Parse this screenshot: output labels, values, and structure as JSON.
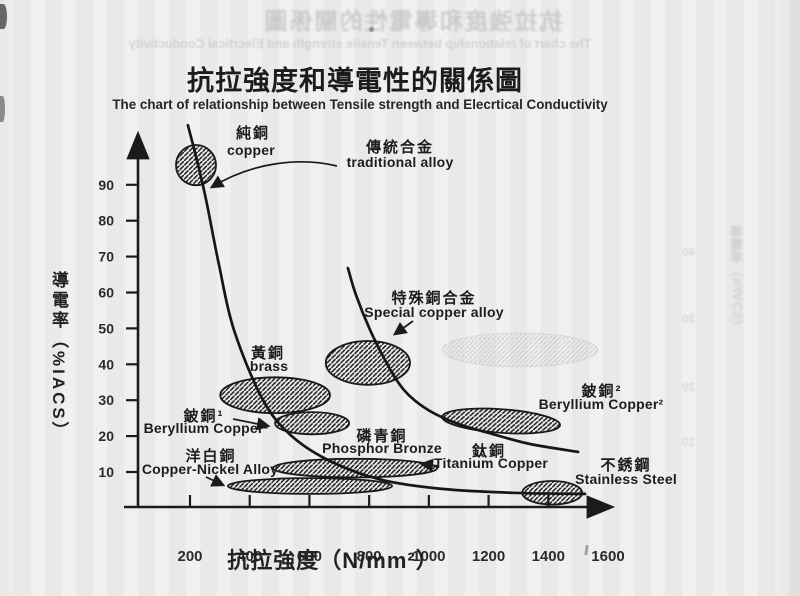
{
  "document": {
    "title_zh": "抗拉強度和導電性的關係圖",
    "subtitle_en": "The chart of relationship between Tensile strength and Elecrtical Conductivity"
  },
  "bleedthrough": {
    "top_title_mirrored": "抗拉強度和導電性的關係圖",
    "top_subtitle_mirrored": "The chart of relationship between Tensile strength and Elecrtical Conductivity",
    "right_vertical_mirrored": "導電率（%IACS）",
    "right_margin_numbers": [
      "40",
      "30",
      "20",
      "10"
    ]
  },
  "chart_data": {
    "type": "scatter",
    "title": "抗拉強度和導電性的關係圖",
    "subtitle": "The chart of relationship between Tensile strength and Elecrtical Conductivity",
    "xlabel": "抗拉強度（N/mm²）",
    "ylabel": "導電率（%IACS）",
    "xlim": [
      0,
      1650
    ],
    "ylim": [
      0,
      108
    ],
    "grid": false,
    "legend": "none",
    "x_ticks": [
      200,
      400,
      600,
      800,
      1000,
      1200,
      1400,
      1600
    ],
    "y_ticks": [
      10,
      20,
      30,
      40,
      50,
      60,
      70,
      80,
      90
    ],
    "colors": {
      "ink": "#1f1f1f",
      "hatch": "#1b1b1b",
      "paper": "#edeceb",
      "ghost": "#b5b7ba"
    },
    "regions": [
      {
        "id": "copper",
        "label_zh": "純銅",
        "label_en": "copper",
        "center_ts": 220,
        "center_iacs": 95.5,
        "r_ts": 67,
        "r_iacs": 5.6
      },
      {
        "id": "brass",
        "label_zh": "黃銅",
        "label_en": "brass",
        "center_ts": 485,
        "center_iacs": 31.4,
        "r_ts": 184,
        "r_iacs": 5.0
      },
      {
        "id": "special_alloy_region",
        "label_zh": "",
        "label_en": "",
        "center_ts": 796,
        "center_iacs": 40.4,
        "r_ts": 141,
        "r_iacs": 6.1
      },
      {
        "id": "beryllium_copper_1",
        "label_zh": "鈹銅¹",
        "label_en": "Beryllium Copper¹",
        "center_ts": 609,
        "center_iacs": 23.6,
        "r_ts": 124,
        "r_iacs": 3.1
      },
      {
        "id": "phosphor_bronze",
        "label_zh": "磷青銅",
        "label_en": "Phosphor Bronze",
        "center_ts": 753,
        "center_iacs": 11.1,
        "r_ts": 275,
        "r_iacs": 2.6
      },
      {
        "id": "copper_nickel_alloy",
        "label_zh": "洋白銅",
        "label_en": "Copper-Nickel Alloy",
        "center_ts": 602,
        "center_iacs": 6.1,
        "r_ts": 275,
        "r_iacs": 2.2
      },
      {
        "id": "titanium_copper",
        "label_zh": "鈦銅",
        "label_en": "Titanium Copper",
        "center_ts": 963,
        "center_iacs": 12.2,
        "r_ts": 0,
        "r_iacs": 0
      },
      {
        "id": "beryllium_copper_2",
        "label_zh": "鈹銅²",
        "label_en": "Beryllium Copper²",
        "center_ts": 1242,
        "center_iacs": 24.2,
        "r_ts": 198,
        "r_iacs": 3.3,
        "tilt_deg": 4
      },
      {
        "id": "stainless_steel",
        "label_zh": "不銹鋼",
        "label_en": "Stainless Steel",
        "center_ts": 1413,
        "center_iacs": 4.2,
        "r_ts": 100,
        "r_iacs": 3.3
      },
      {
        "id": "ghost_bleedthrough_region",
        "label_zh": "",
        "label_en": "",
        "center_ts": 1305,
        "center_iacs": 44.0,
        "r_ts": 261,
        "r_iacs": 4.7,
        "ghost": true
      }
    ],
    "curves": [
      {
        "id": "traditional_alloy",
        "label_zh": "傳統合金",
        "label_en": "traditional alloy",
        "points": [
          [
            193,
            106.6
          ],
          [
            223,
            96.9
          ],
          [
            254,
            85.8
          ],
          [
            297,
            67.7
          ],
          [
            347,
            49.6
          ],
          [
            444,
            30.1
          ],
          [
            541,
            20.0
          ],
          [
            675,
            12.8
          ],
          [
            843,
            7.8
          ],
          [
            1044,
            5.3
          ],
          [
            1279,
            4.2
          ],
          [
            1523,
            3.9
          ]
        ]
      },
      {
        "id": "special_copper_alloy",
        "label_zh": "特殊銅合金",
        "label_en": "Special copper alloy",
        "points": [
          [
            729,
            66.8
          ],
          [
            756,
            59.3
          ],
          [
            803,
            49.6
          ],
          [
            857,
            40.6
          ],
          [
            917,
            32.8
          ],
          [
            997,
            27.3
          ],
          [
            1098,
            23.4
          ],
          [
            1212,
            20.6
          ],
          [
            1339,
            17.8
          ],
          [
            1500,
            15.6
          ]
        ]
      }
    ]
  }
}
